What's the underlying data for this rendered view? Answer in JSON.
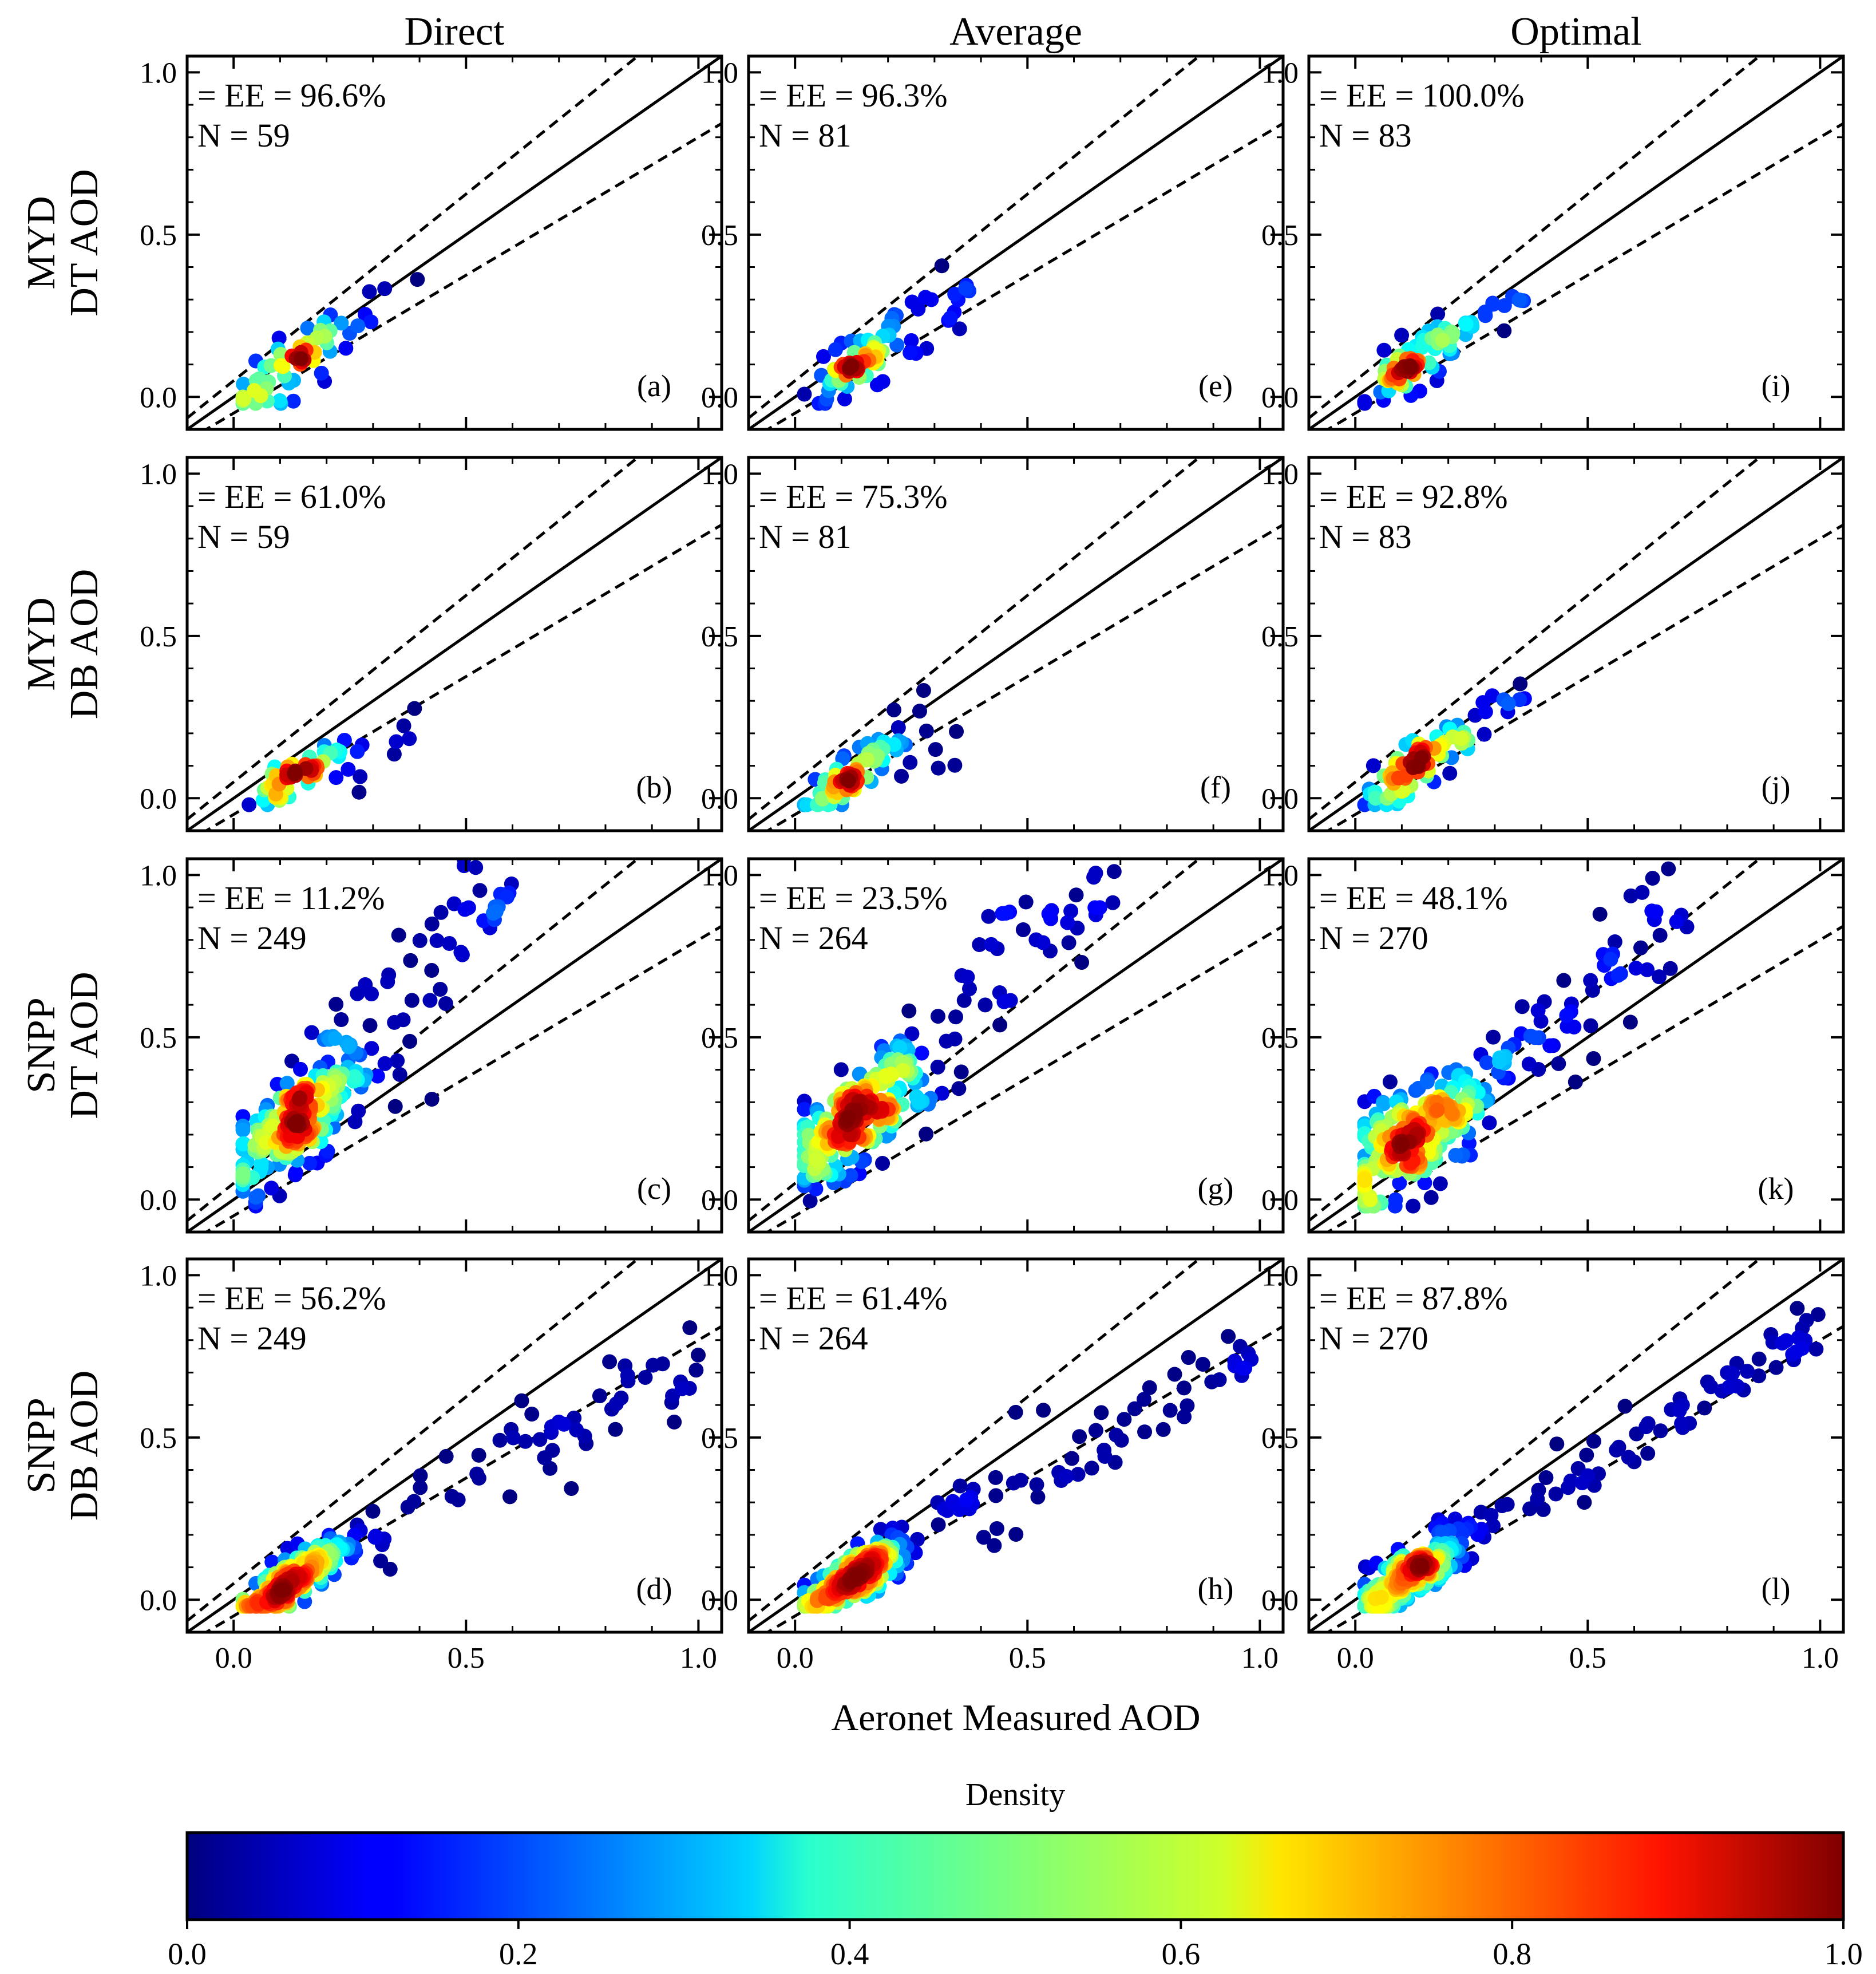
{
  "figure": {
    "column_titles": [
      "Direct",
      "Average",
      "Optimal"
    ],
    "row_labels": [
      [
        "MYD",
        "DT AOD"
      ],
      [
        "MYD",
        "DB AOD"
      ],
      [
        "SNPP",
        "DT AOD"
      ],
      [
        "SNPP",
        "DB AOD"
      ]
    ],
    "x_axis_label": "Aeronet Measured AOD",
    "colorbar": {
      "title": "Density",
      "ticks": [
        "0.0",
        "0.2",
        "0.4",
        "0.6",
        "0.8",
        "1.0"
      ],
      "colormap": "jet",
      "range": [
        0,
        1
      ]
    }
  },
  "chart_data": [
    {
      "type": "scatter",
      "panel": "(a)",
      "column": "Direct",
      "row": "MYD DT AOD",
      "ee_label": "= EE = 96.6%",
      "n_label": "N = 59",
      "xlim": [
        -0.1,
        1.05
      ],
      "ylim": [
        -0.1,
        1.05
      ],
      "xticks": [
        "0.0",
        "0.5",
        "1.0"
      ],
      "yticks": [
        "0.0",
        "0.5",
        "1.0"
      ],
      "reference_lines": [
        "1:1",
        "EE upper",
        "EE lower"
      ]
    },
    {
      "type": "scatter",
      "panel": "(b)",
      "column": "Direct",
      "row": "MYD DB AOD",
      "ee_label": "= EE = 61.0%",
      "n_label": "N = 59",
      "xlim": [
        -0.1,
        1.05
      ],
      "ylim": [
        -0.1,
        1.05
      ],
      "xticks": [
        "0.0",
        "0.5",
        "1.0"
      ],
      "yticks": [
        "0.0",
        "0.5",
        "1.0"
      ],
      "reference_lines": [
        "1:1",
        "EE upper",
        "EE lower"
      ]
    },
    {
      "type": "scatter",
      "panel": "(c)",
      "column": "Direct",
      "row": "SNPP DT AOD",
      "ee_label": "= EE = 11.2%",
      "n_label": "N = 249",
      "xlim": [
        -0.1,
        1.05
      ],
      "ylim": [
        -0.1,
        1.05
      ],
      "xticks": [
        "0.0",
        "0.5",
        "1.0"
      ],
      "yticks": [
        "0.0",
        "0.5",
        "1.0"
      ],
      "reference_lines": [
        "1:1",
        "EE upper",
        "EE lower"
      ]
    },
    {
      "type": "scatter",
      "panel": "(d)",
      "column": "Direct",
      "row": "SNPP DB AOD",
      "ee_label": "= EE = 56.2%",
      "n_label": "N = 249",
      "xlim": [
        -0.1,
        1.05
      ],
      "ylim": [
        -0.1,
        1.05
      ],
      "xticks": [
        "0.0",
        "0.5",
        "1.0"
      ],
      "yticks": [
        "0.0",
        "0.5",
        "1.0"
      ],
      "reference_lines": [
        "1:1",
        "EE upper",
        "EE lower"
      ]
    },
    {
      "type": "scatter",
      "panel": "(e)",
      "column": "Average",
      "row": "MYD DT AOD",
      "ee_label": "= EE = 96.3%",
      "n_label": "N = 81",
      "xlim": [
        -0.1,
        1.05
      ],
      "ylim": [
        -0.1,
        1.05
      ],
      "xticks": [
        "0.0",
        "0.5",
        "1.0"
      ],
      "yticks": [
        "0.0",
        "0.5",
        "1.0"
      ],
      "reference_lines": [
        "1:1",
        "EE upper",
        "EE lower"
      ]
    },
    {
      "type": "scatter",
      "panel": "(f)",
      "column": "Average",
      "row": "MYD DB AOD",
      "ee_label": "= EE = 75.3%",
      "n_label": "N = 81",
      "xlim": [
        -0.1,
        1.05
      ],
      "ylim": [
        -0.1,
        1.05
      ],
      "xticks": [
        "0.0",
        "0.5",
        "1.0"
      ],
      "yticks": [
        "0.0",
        "0.5",
        "1.0"
      ],
      "reference_lines": [
        "1:1",
        "EE upper",
        "EE lower"
      ]
    },
    {
      "type": "scatter",
      "panel": "(g)",
      "column": "Average",
      "row": "SNPP DT AOD",
      "ee_label": "= EE = 23.5%",
      "n_label": "N = 264",
      "xlim": [
        -0.1,
        1.05
      ],
      "ylim": [
        -0.1,
        1.05
      ],
      "xticks": [
        "0.0",
        "0.5",
        "1.0"
      ],
      "yticks": [
        "0.0",
        "0.5",
        "1.0"
      ],
      "reference_lines": [
        "1:1",
        "EE upper",
        "EE lower"
      ]
    },
    {
      "type": "scatter",
      "panel": "(h)",
      "column": "Average",
      "row": "SNPP DB AOD",
      "ee_label": "= EE = 61.4%",
      "n_label": "N = 264",
      "xlim": [
        -0.1,
        1.05
      ],
      "ylim": [
        -0.1,
        1.05
      ],
      "xticks": [
        "0.0",
        "0.5",
        "1.0"
      ],
      "yticks": [
        "0.0",
        "0.5",
        "1.0"
      ],
      "reference_lines": [
        "1:1",
        "EE upper",
        "EE lower"
      ]
    },
    {
      "type": "scatter",
      "panel": "(i)",
      "column": "Optimal",
      "row": "MYD DT AOD",
      "ee_label": "= EE = 100.0%",
      "n_label": "N = 83",
      "xlim": [
        -0.1,
        1.05
      ],
      "ylim": [
        -0.1,
        1.05
      ],
      "xticks": [
        "0.0",
        "0.5",
        "1.0"
      ],
      "yticks": [
        "0.0",
        "0.5",
        "1.0"
      ],
      "reference_lines": [
        "1:1",
        "EE upper",
        "EE lower"
      ]
    },
    {
      "type": "scatter",
      "panel": "(j)",
      "column": "Optimal",
      "row": "MYD DB AOD",
      "ee_label": "= EE = 92.8%",
      "n_label": "N = 83",
      "xlim": [
        -0.1,
        1.05
      ],
      "ylim": [
        -0.1,
        1.05
      ],
      "xticks": [
        "0.0",
        "0.5",
        "1.0"
      ],
      "yticks": [
        "0.0",
        "0.5",
        "1.0"
      ],
      "reference_lines": [
        "1:1",
        "EE upper",
        "EE lower"
      ]
    },
    {
      "type": "scatter",
      "panel": "(k)",
      "column": "Optimal",
      "row": "SNPP DT AOD",
      "ee_label": "= EE = 48.1%",
      "n_label": "N = 270",
      "xlim": [
        -0.1,
        1.05
      ],
      "ylim": [
        -0.1,
        1.05
      ],
      "xticks": [
        "0.0",
        "0.5",
        "1.0"
      ],
      "yticks": [
        "0.0",
        "0.5",
        "1.0"
      ],
      "reference_lines": [
        "1:1",
        "EE upper",
        "EE lower"
      ]
    },
    {
      "type": "scatter",
      "panel": "(l)",
      "column": "Optimal",
      "row": "SNPP DB AOD",
      "ee_label": "= EE = 87.8%",
      "n_label": "N = 270",
      "xlim": [
        -0.1,
        1.05
      ],
      "ylim": [
        -0.1,
        1.05
      ],
      "xticks": [
        "0.0",
        "0.5",
        "1.0"
      ],
      "yticks": [
        "0.0",
        "0.5",
        "1.0"
      ],
      "reference_lines": [
        "1:1",
        "EE upper",
        "EE lower"
      ]
    }
  ]
}
